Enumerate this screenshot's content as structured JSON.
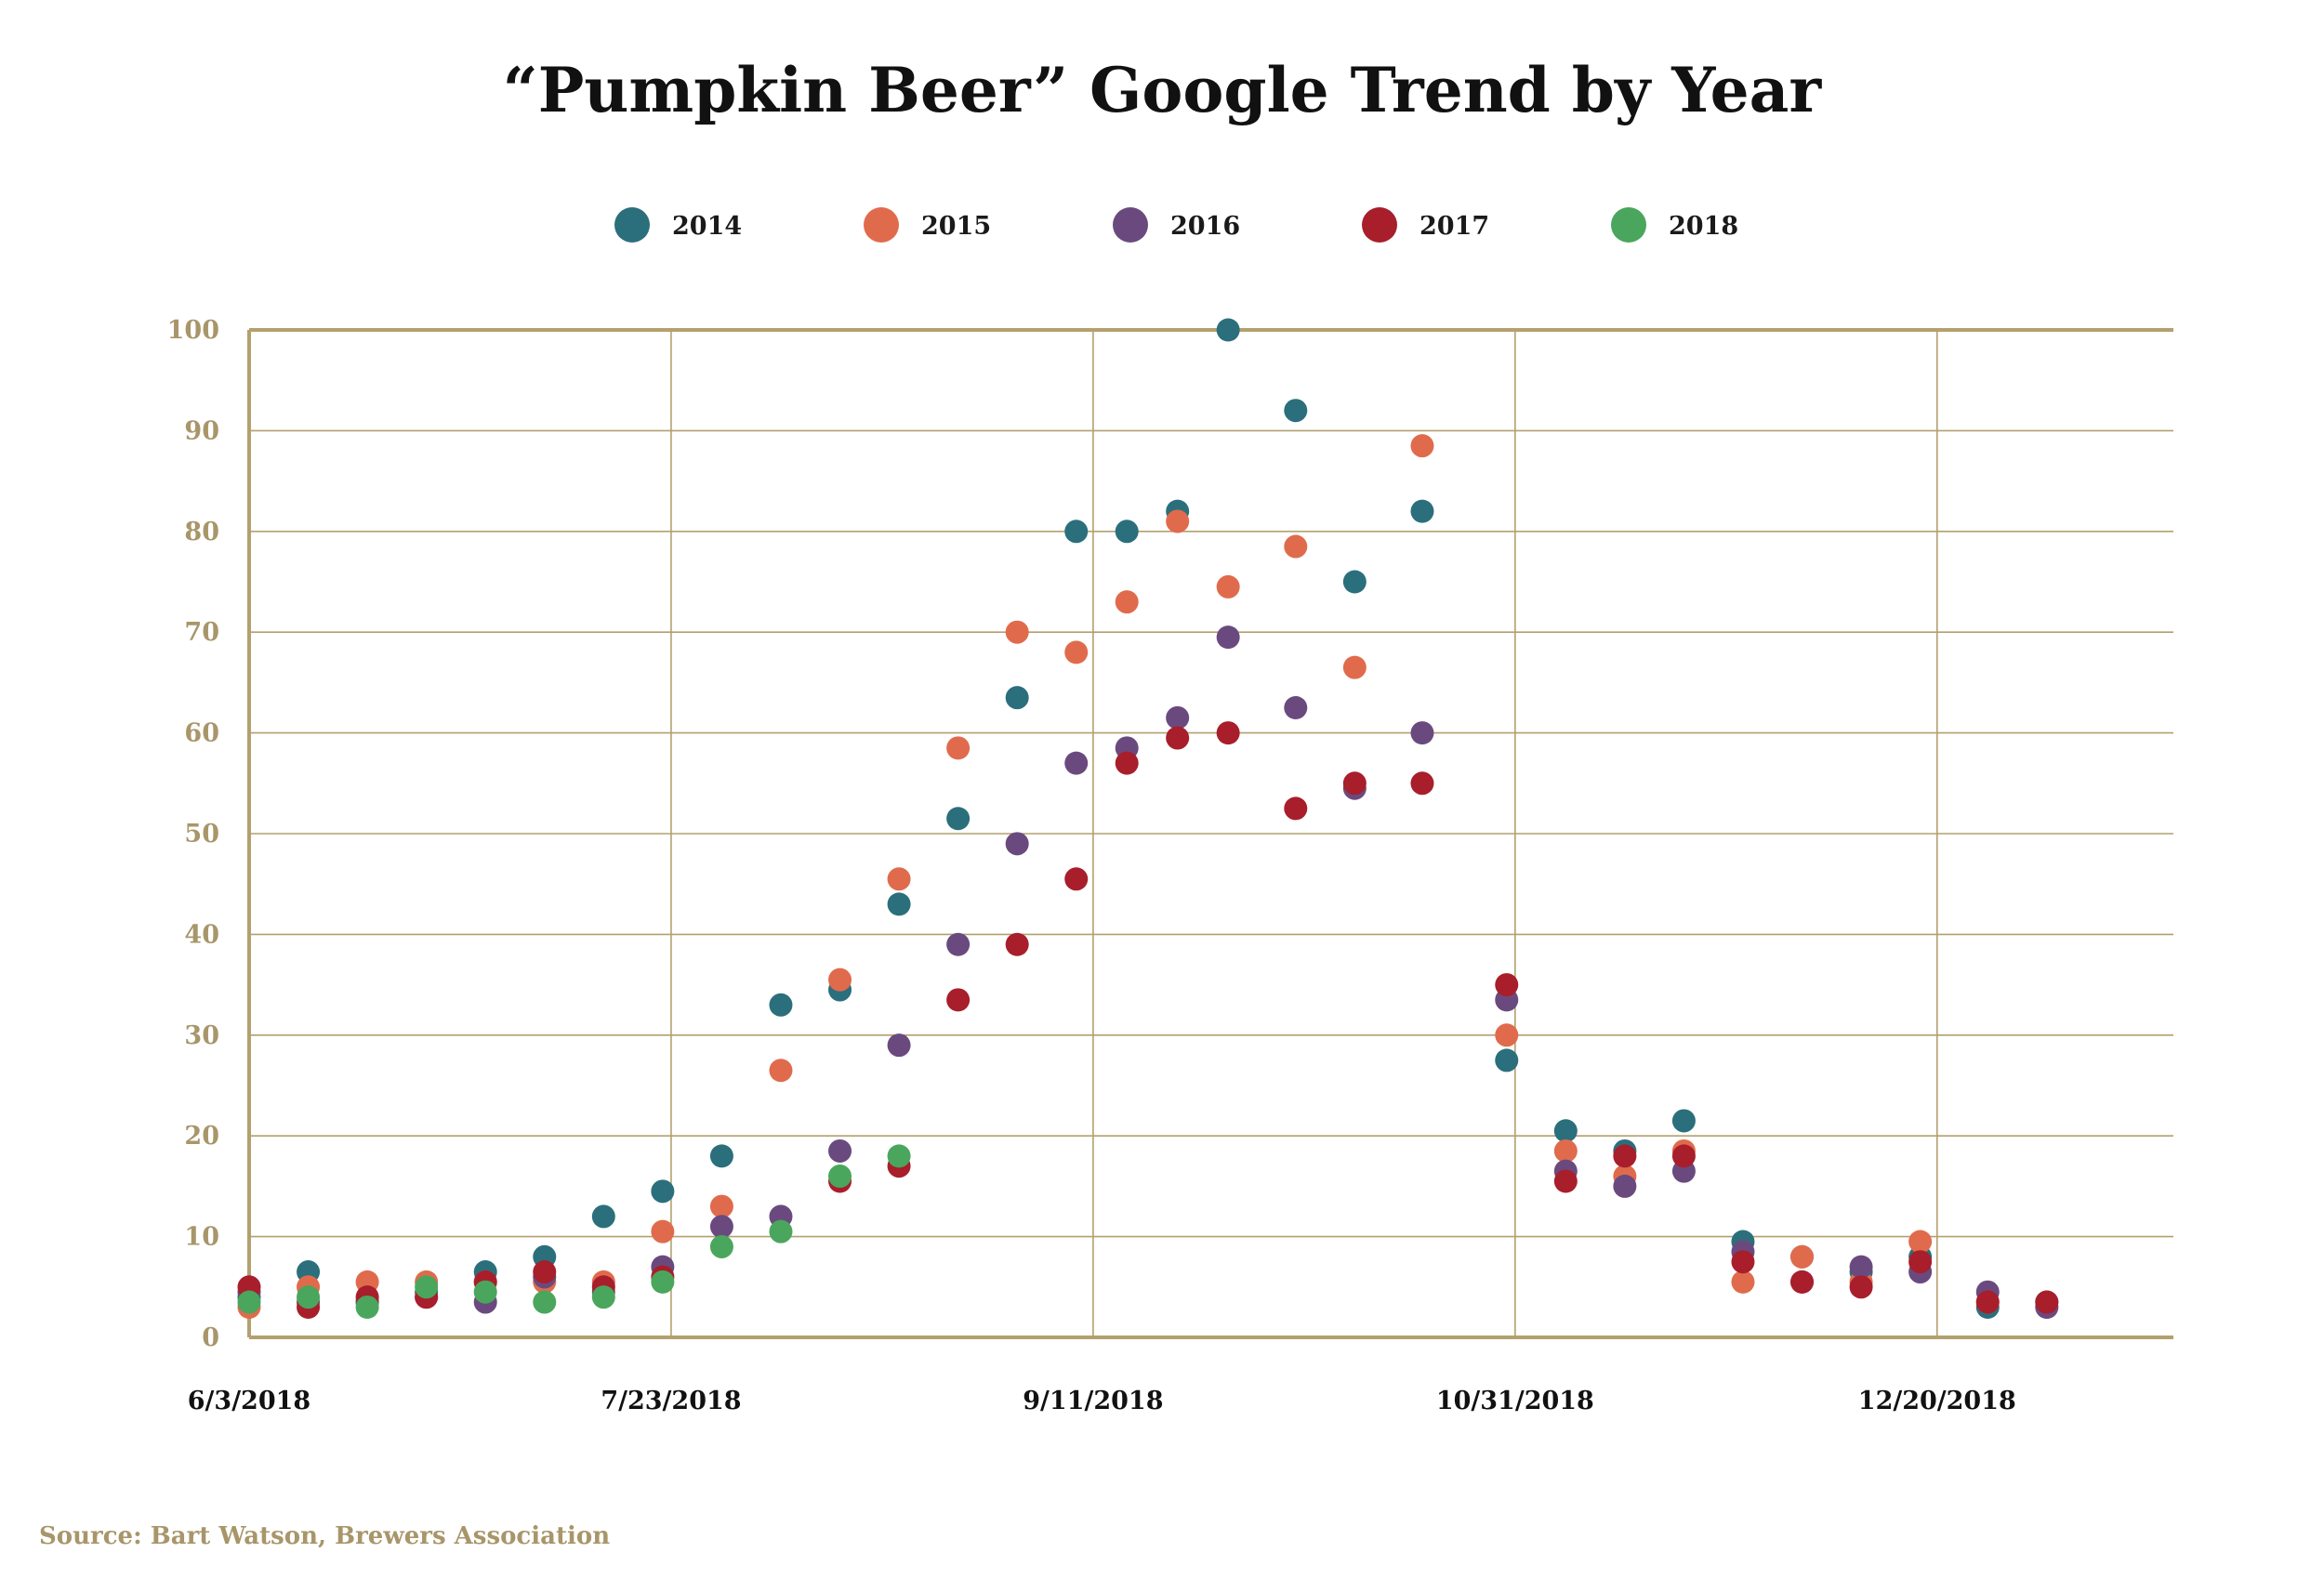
{
  "chart_data": {
    "type": "scatter",
    "title": "“Pumpkin Beer” Google Trend by Year",
    "xlabel": "",
    "ylabel": "",
    "ylim": [
      0,
      100
    ],
    "yticks": [
      0,
      10,
      20,
      30,
      40,
      50,
      60,
      70,
      80,
      90,
      100
    ],
    "xlim": [
      "2018-06-03",
      "2019-01-17"
    ],
    "xticks": [
      {
        "label": "6/3/2018",
        "date": "2018-06-03"
      },
      {
        "label": "7/23/2018",
        "date": "2018-07-23"
      },
      {
        "label": "9/11/2018",
        "date": "2018-09-11"
      },
      {
        "label": "10/31/2018",
        "date": "2018-10-31"
      },
      {
        "label": "12/20/2018",
        "date": "2018-12-20"
      }
    ],
    "grid": true,
    "legend_position": "top",
    "series": [
      {
        "name": "2014",
        "color": "#2b6f7c",
        "points": [
          [
            "2018-06-03",
            4
          ],
          [
            "2018-06-10",
            6.5
          ],
          [
            "2018-06-17",
            3.5
          ],
          [
            "2018-06-24",
            4.5
          ],
          [
            "2018-07-01",
            6.5
          ],
          [
            "2018-07-08",
            8
          ],
          [
            "2018-07-15",
            12
          ],
          [
            "2018-07-22",
            14.5
          ],
          [
            "2018-07-29",
            18
          ],
          [
            "2018-08-05",
            33
          ],
          [
            "2018-08-12",
            34.5
          ],
          [
            "2018-08-19",
            43
          ],
          [
            "2018-08-26",
            51.5
          ],
          [
            "2018-09-02",
            63.5
          ],
          [
            "2018-09-09",
            80
          ],
          [
            "2018-09-15",
            80
          ],
          [
            "2018-09-21",
            82
          ],
          [
            "2018-09-27",
            100
          ],
          [
            "2018-10-05",
            92
          ],
          [
            "2018-10-12",
            75
          ],
          [
            "2018-10-20",
            82
          ],
          [
            "2018-10-30",
            27.5
          ],
          [
            "2018-11-06",
            20.5
          ],
          [
            "2018-11-13",
            18.5
          ],
          [
            "2018-11-20",
            21.5
          ],
          [
            "2018-11-27",
            9.5
          ],
          [
            "2018-12-04",
            8
          ],
          [
            "2018-12-11",
            6.5
          ],
          [
            "2018-12-18",
            8
          ],
          [
            "2018-12-26",
            3
          ],
          [
            "2019-01-02",
            3.5
          ]
        ]
      },
      {
        "name": "2015",
        "color": "#e06b4c",
        "points": [
          [
            "2018-06-03",
            3
          ],
          [
            "2018-06-10",
            5
          ],
          [
            "2018-06-17",
            5.5
          ],
          [
            "2018-06-24",
            5.5
          ],
          [
            "2018-07-01",
            5.5
          ],
          [
            "2018-07-08",
            5.5
          ],
          [
            "2018-07-15",
            5.5
          ],
          [
            "2018-07-22",
            10.5
          ],
          [
            "2018-07-29",
            13
          ],
          [
            "2018-08-05",
            26.5
          ],
          [
            "2018-08-12",
            35.5
          ],
          [
            "2018-08-19",
            45.5
          ],
          [
            "2018-08-26",
            58.5
          ],
          [
            "2018-09-02",
            70
          ],
          [
            "2018-09-09",
            68
          ],
          [
            "2018-09-15",
            73
          ],
          [
            "2018-09-21",
            81
          ],
          [
            "2018-09-27",
            74.5
          ],
          [
            "2018-10-05",
            78.5
          ],
          [
            "2018-10-12",
            66.5
          ],
          [
            "2018-10-20",
            88.5
          ],
          [
            "2018-10-30",
            30
          ],
          [
            "2018-11-06",
            18.5
          ],
          [
            "2018-11-13",
            16
          ],
          [
            "2018-11-20",
            18.5
          ],
          [
            "2018-11-27",
            5.5
          ],
          [
            "2018-12-04",
            8
          ],
          [
            "2018-12-11",
            5.5
          ],
          [
            "2018-12-18",
            9.5
          ],
          [
            "2018-12-26",
            3.5
          ],
          [
            "2019-01-02",
            3
          ]
        ]
      },
      {
        "name": "2016",
        "color": "#6a4a7e",
        "points": [
          [
            "2018-06-03",
            4.5
          ],
          [
            "2018-06-10",
            3.5
          ],
          [
            "2018-06-17",
            3.5
          ],
          [
            "2018-06-24",
            4
          ],
          [
            "2018-07-01",
            3.5
          ],
          [
            "2018-07-08",
            6
          ],
          [
            "2018-07-15",
            4.5
          ],
          [
            "2018-07-22",
            7
          ],
          [
            "2018-07-29",
            11
          ],
          [
            "2018-08-05",
            12
          ],
          [
            "2018-08-12",
            18.5
          ],
          [
            "2018-08-19",
            29
          ],
          [
            "2018-08-26",
            39
          ],
          [
            "2018-09-02",
            49
          ],
          [
            "2018-09-09",
            57
          ],
          [
            "2018-09-15",
            58.5
          ],
          [
            "2018-09-21",
            61.5
          ],
          [
            "2018-09-27",
            69.5
          ],
          [
            "2018-10-05",
            62.5
          ],
          [
            "2018-10-12",
            54.5
          ],
          [
            "2018-10-20",
            60
          ],
          [
            "2018-10-30",
            33.5
          ],
          [
            "2018-11-06",
            16.5
          ],
          [
            "2018-11-13",
            15
          ],
          [
            "2018-11-20",
            16.5
          ],
          [
            "2018-11-27",
            8.5
          ],
          [
            "2018-12-04",
            5.5
          ],
          [
            "2018-12-11",
            7
          ],
          [
            "2018-12-18",
            6.5
          ],
          [
            "2018-12-26",
            4.5
          ],
          [
            "2019-01-02",
            3
          ]
        ]
      },
      {
        "name": "2017",
        "color": "#a81e2b",
        "points": [
          [
            "2018-06-03",
            5
          ],
          [
            "2018-06-10",
            3
          ],
          [
            "2018-06-17",
            4
          ],
          [
            "2018-06-24",
            4
          ],
          [
            "2018-07-01",
            5.5
          ],
          [
            "2018-07-08",
            6.5
          ],
          [
            "2018-07-15",
            5
          ],
          [
            "2018-07-22",
            6
          ],
          [
            "2018-08-12",
            15.5
          ],
          [
            "2018-08-19",
            17
          ],
          [
            "2018-08-26",
            33.5
          ],
          [
            "2018-09-02",
            39
          ],
          [
            "2018-09-09",
            45.5
          ],
          [
            "2018-09-15",
            57
          ],
          [
            "2018-09-21",
            59.5
          ],
          [
            "2018-09-27",
            60
          ],
          [
            "2018-10-05",
            52.5
          ],
          [
            "2018-10-12",
            55
          ],
          [
            "2018-10-20",
            55
          ],
          [
            "2018-10-30",
            35
          ],
          [
            "2018-11-06",
            15.5
          ],
          [
            "2018-11-13",
            18
          ],
          [
            "2018-11-20",
            18
          ],
          [
            "2018-11-27",
            7.5
          ],
          [
            "2018-12-04",
            5.5
          ],
          [
            "2018-12-11",
            5
          ],
          [
            "2018-12-18",
            7.5
          ],
          [
            "2018-12-26",
            3.5
          ],
          [
            "2019-01-02",
            3.5
          ]
        ]
      },
      {
        "name": "2018",
        "color": "#4aa65c",
        "points": [
          [
            "2018-06-03",
            3.5
          ],
          [
            "2018-06-10",
            4
          ],
          [
            "2018-06-17",
            3
          ],
          [
            "2018-06-24",
            5
          ],
          [
            "2018-07-01",
            4.5
          ],
          [
            "2018-07-08",
            3.5
          ],
          [
            "2018-07-15",
            4
          ],
          [
            "2018-07-22",
            5.5
          ],
          [
            "2018-07-29",
            9
          ],
          [
            "2018-08-05",
            10.5
          ],
          [
            "2018-08-12",
            16
          ],
          [
            "2018-08-19",
            18
          ]
        ]
      }
    ],
    "source": "Source: Bart Watson, Brewers Association"
  }
}
